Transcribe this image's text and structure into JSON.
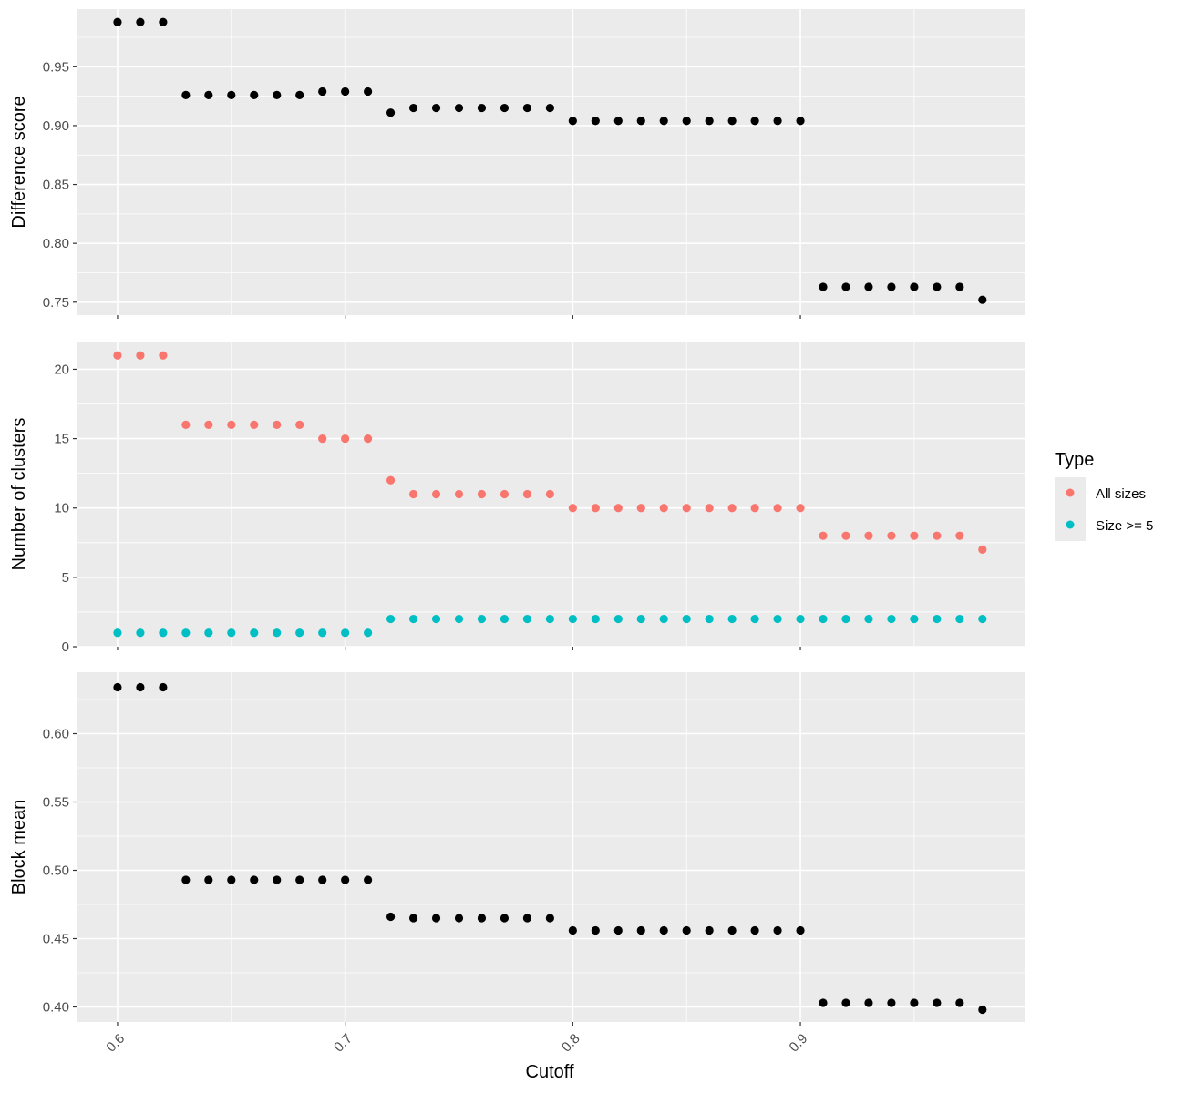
{
  "chart_data": {
    "type": "scatter",
    "layout": "faceted-vertical",
    "x_label": "Cutoff",
    "x_ticks": [
      "0.6",
      "0.7",
      "0.8",
      "0.9"
    ],
    "x_tick_values": [
      0.6,
      0.7,
      0.8,
      0.9
    ],
    "xlim": [
      0.582,
      0.9985
    ],
    "x": [
      0.6,
      0.61,
      0.62,
      0.63,
      0.64,
      0.65,
      0.66,
      0.67,
      0.68,
      0.69,
      0.7,
      0.71,
      0.72,
      0.73,
      0.74,
      0.75,
      0.76,
      0.77,
      0.78,
      0.79,
      0.8,
      0.81,
      0.82,
      0.83,
      0.84,
      0.85,
      0.86,
      0.87,
      0.88,
      0.89,
      0.9,
      0.91,
      0.92,
      0.93,
      0.94,
      0.95,
      0.96,
      0.97,
      0.98
    ],
    "legend": {
      "title": "Type",
      "entries": [
        {
          "label": "All sizes",
          "color": "#F8766D"
        },
        {
          "label": "Size >= 5",
          "color": "#00BFC4"
        }
      ]
    },
    "panels": [
      {
        "ylabel": "Difference score",
        "ylim": [
          0.739,
          0.999
        ],
        "y_ticks": [
          "0.75",
          "0.80",
          "0.85",
          "0.90",
          "0.95"
        ],
        "y_tick_values": [
          0.75,
          0.8,
          0.85,
          0.9,
          0.95
        ],
        "series": [
          {
            "color": "#000000",
            "values": [
              0.988,
              0.988,
              0.988,
              0.926,
              0.926,
              0.926,
              0.926,
              0.926,
              0.926,
              0.929,
              0.929,
              0.929,
              0.911,
              0.915,
              0.915,
              0.915,
              0.915,
              0.915,
              0.915,
              0.915,
              0.904,
              0.904,
              0.904,
              0.904,
              0.904,
              0.904,
              0.904,
              0.904,
              0.904,
              0.904,
              0.904,
              0.763,
              0.763,
              0.763,
              0.763,
              0.763,
              0.763,
              0.763,
              0.752
            ]
          }
        ]
      },
      {
        "ylabel": "Number of clusters",
        "ylim": [
          0,
          22
        ],
        "y_ticks": [
          "0",
          "5",
          "10",
          "15",
          "20"
        ],
        "y_tick_values": [
          0,
          5,
          10,
          15,
          20
        ],
        "series": [
          {
            "name": "All sizes",
            "color": "#F8766D",
            "values": [
              21,
              21,
              21,
              16,
              16,
              16,
              16,
              16,
              16,
              15,
              15,
              15,
              12,
              11,
              11,
              11,
              11,
              11,
              11,
              11,
              10,
              10,
              10,
              10,
              10,
              10,
              10,
              10,
              10,
              10,
              10,
              8,
              8,
              8,
              8,
              8,
              8,
              8,
              7
            ]
          },
          {
            "name": "Size >= 5",
            "color": "#00BFC4",
            "values": [
              1,
              1,
              1,
              1,
              1,
              1,
              1,
              1,
              1,
              1,
              1,
              1,
              2,
              2,
              2,
              2,
              2,
              2,
              2,
              2,
              2,
              2,
              2,
              2,
              2,
              2,
              2,
              2,
              2,
              2,
              2,
              2,
              2,
              2,
              2,
              2,
              2,
              2,
              2
            ]
          }
        ]
      },
      {
        "ylabel": "Block mean",
        "ylim": [
          0.389,
          0.645
        ],
        "y_ticks": [
          "0.40",
          "0.45",
          "0.50",
          "0.55",
          "0.60"
        ],
        "y_tick_values": [
          0.4,
          0.45,
          0.5,
          0.55,
          0.6
        ],
        "series": [
          {
            "color": "#000000",
            "values": [
              0.634,
              0.634,
              0.634,
              0.493,
              0.493,
              0.493,
              0.493,
              0.493,
              0.493,
              0.493,
              0.493,
              0.493,
              0.466,
              0.465,
              0.465,
              0.465,
              0.465,
              0.465,
              0.465,
              0.465,
              0.456,
              0.456,
              0.456,
              0.456,
              0.456,
              0.456,
              0.456,
              0.456,
              0.456,
              0.456,
              0.456,
              0.403,
              0.403,
              0.403,
              0.403,
              0.403,
              0.403,
              0.403,
              0.398
            ]
          }
        ]
      }
    ]
  }
}
